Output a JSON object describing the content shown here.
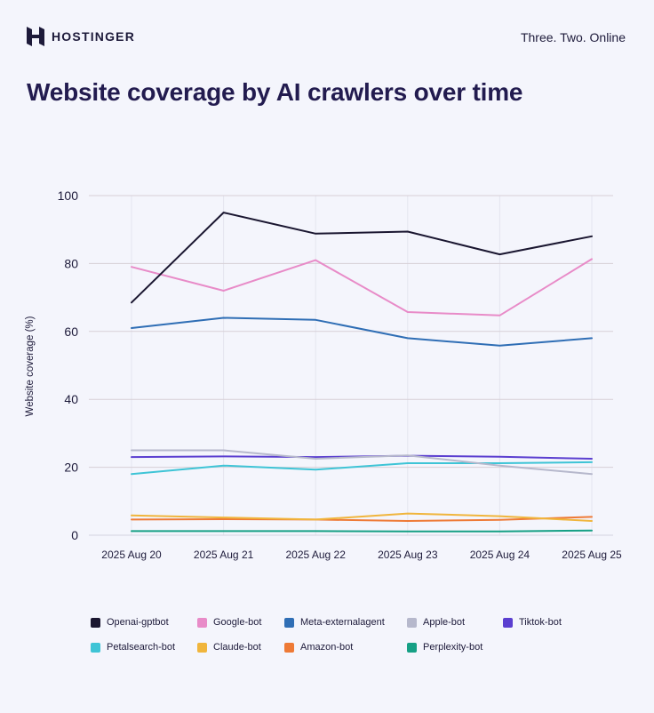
{
  "header": {
    "brand": "HOSTINGER",
    "tagline": "Three. Two. Online",
    "logo_icon": "hostinger-logo-icon"
  },
  "page_title": "Website coverage by AI crawlers over time",
  "chart_data": {
    "type": "line",
    "title": "",
    "ylabel": "Website coverage (%)",
    "xlabel": "",
    "ylim": [
      0,
      100
    ],
    "yticks": [
      0,
      20,
      40,
      60,
      80,
      100
    ],
    "grid": true,
    "legend_position": "bottom",
    "categories": [
      "2025 Aug 20",
      "2025 Aug 21",
      "2025 Aug 22",
      "2025 Aug 23",
      "2025 Aug 24",
      "2025 Aug 25"
    ],
    "series": [
      {
        "name": "Openai-gptbot",
        "color": "#1a1630",
        "values": [
          68.5,
          95,
          88.8,
          89.4,
          82.7,
          88
        ]
      },
      {
        "name": "Google-bot",
        "color": "#e88bc8",
        "values": [
          79,
          72,
          81,
          65.7,
          64.7,
          81.3
        ]
      },
      {
        "name": "Meta-externalagent",
        "color": "#2f6eb5",
        "values": [
          61,
          64,
          63.4,
          58,
          55.8,
          58
        ]
      },
      {
        "name": "Apple-bot",
        "color": "#b6b8cc",
        "values": [
          25,
          25,
          22.5,
          23.5,
          20.5,
          18
        ]
      },
      {
        "name": "Tiktok-bot",
        "color": "#5b3fd0",
        "values": [
          23,
          23.2,
          23,
          23.4,
          23.1,
          22.5
        ]
      },
      {
        "name": "Petalsearch-bot",
        "color": "#3ec4d6",
        "values": [
          18,
          20.5,
          19.3,
          21.2,
          21.2,
          21.5
        ]
      },
      {
        "name": "Claude-bot",
        "color": "#f0b53c",
        "values": [
          5.8,
          5.2,
          4.6,
          6.4,
          5.6,
          4.2
        ]
      },
      {
        "name": "Amazon-bot",
        "color": "#ee7a36",
        "values": [
          4.6,
          4.7,
          4.6,
          4.2,
          4.5,
          5.4
        ]
      },
      {
        "name": "Perplexity-bot",
        "color": "#16a085",
        "values": [
          1.2,
          1.2,
          1.2,
          1.1,
          1.1,
          1.4
        ]
      }
    ]
  }
}
